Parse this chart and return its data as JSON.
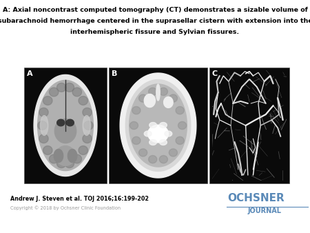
{
  "title_line1": "A: Axial noncontrast computed tomography (CT) demonstrates a sizable volume of",
  "title_line2": "subarachnoid hemorrhage centered in the suprasellar cistern with extension into the",
  "title_line3": "interhemispheric fissure and Sylvian fissures.",
  "author_line": "Andrew J. Steven et al. TOJ 2016;16:199-202",
  "copyright_line": "Copyright © 2018 by Ochsner Clinic Foundation",
  "journal_text_ochsner": "OCHSNER",
  "journal_text_journal": "JOURNAL",
  "panel_labels": [
    "A",
    "B",
    "C"
  ],
  "background_color": "#ffffff",
  "title_fontsize": 6.8,
  "author_fontsize": 5.8,
  "copyright_fontsize": 4.8,
  "journal_fontsize_large": 11,
  "journal_fontsize_small": 7,
  "panel_label_fontsize": 8,
  "title_color": "#000000",
  "author_color": "#000000",
  "copyright_color": "#999999",
  "journal_color": "#5b8ab8",
  "panel_bg": "#0a0a0a"
}
